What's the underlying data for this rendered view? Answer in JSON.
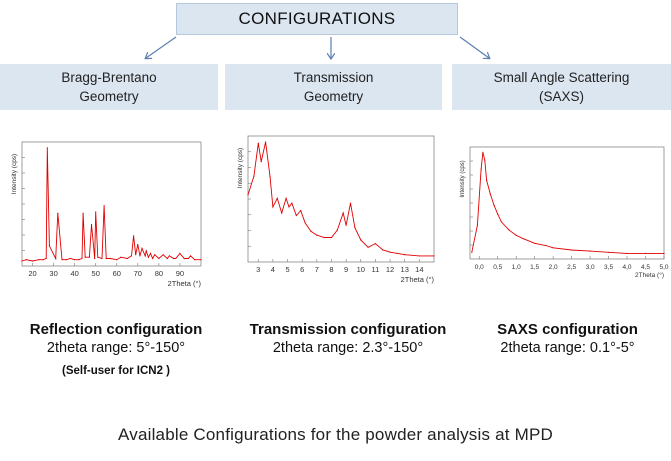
{
  "header": {
    "title": "CONFIGURATIONS"
  },
  "geometries": [
    {
      "line1": "Bragg-Brentano",
      "line2": "Geometry"
    },
    {
      "line1": "Transmission",
      "line2": "Geometry"
    },
    {
      "line1": "Small Angle Scattering",
      "line2": "(SAXS)"
    }
  ],
  "configs": [
    {
      "title": "Reflection configuration",
      "range": "2theta range: 5°-150°",
      "note": "(Self-user for ICN2 )"
    },
    {
      "title": "Transmission configuration",
      "range": "2theta range: 2.3°-150°"
    },
    {
      "title": "SAXS configuration",
      "range": "2theta range: 0.1°-5°"
    }
  ],
  "caption": "Available Configurations for the powder analysis at MPD",
  "colors": {
    "box_fill": "#dce6f1",
    "arrow": "#5b7fb0",
    "trace": "#e00000"
  },
  "chart_data": [
    {
      "type": "line",
      "ylabel": "Intensity (cps)",
      "xlabel": "2Theta (°)",
      "xlim": [
        15,
        100
      ],
      "xticks": [
        "20",
        "30",
        "40",
        "50",
        "60",
        "70",
        "80",
        "90"
      ],
      "x": [
        15,
        17,
        20,
        23,
        25,
        26.5,
        27,
        28,
        31,
        32,
        34,
        36,
        38,
        40,
        42,
        43.5,
        44,
        45,
        47,
        48,
        49.5,
        50,
        51,
        53,
        54,
        55,
        57,
        60,
        62,
        65,
        67,
        68,
        69,
        70,
        71,
        72,
        73.5,
        74,
        75,
        76,
        77,
        78,
        80,
        82,
        84,
        85,
        87,
        88,
        90,
        92,
        94,
        95,
        97,
        100
      ],
      "y": [
        4,
        5,
        4,
        5,
        5,
        6,
        94,
        16,
        6,
        42,
        5,
        5,
        6,
        5,
        5,
        6,
        42,
        7,
        7,
        33,
        6,
        43,
        7,
        6,
        48,
        6,
        6,
        5,
        7,
        6,
        8,
        24,
        9,
        17,
        8,
        14,
        8,
        12,
        7,
        10,
        6,
        9,
        6,
        9,
        6,
        8,
        6,
        6,
        10,
        6,
        6,
        8,
        5,
        5
      ]
    },
    {
      "type": "line",
      "ylabel": "Intensity (cps)",
      "xlabel": "2Theta (°)",
      "xlim": [
        2.3,
        15
      ],
      "xticks": [
        "3",
        "4",
        "5",
        "6",
        "7",
        "8",
        "9",
        "10",
        "11",
        "12",
        "13",
        "14"
      ],
      "x": [
        2.3,
        2.7,
        3.0,
        3.2,
        3.5,
        3.8,
        4.0,
        4.3,
        4.6,
        4.9,
        5.1,
        5.3,
        5.6,
        5.9,
        6.2,
        6.6,
        7.0,
        7.5,
        8.0,
        8.4,
        8.8,
        9.0,
        9.3,
        9.6,
        10.0,
        10.5,
        11.0,
        11.5,
        12.0,
        12.5,
        13.0,
        14.0,
        15.0
      ],
      "y": [
        55,
        70,
        97,
        82,
        98,
        70,
        45,
        52,
        40,
        52,
        45,
        48,
        38,
        42,
        32,
        25,
        22,
        20,
        20,
        26,
        40,
        30,
        48,
        28,
        18,
        12,
        15,
        10,
        8,
        7,
        6,
        5,
        5
      ]
    },
    {
      "type": "line",
      "ylabel": "Intensity (cps)",
      "xlabel": "2Theta (°)",
      "xlim": [
        -0.25,
        5
      ],
      "xticks": [
        "0,0",
        "0,5",
        "1,0",
        "1,5",
        "2,0",
        "2,5",
        "3,0",
        "3,5",
        "4,0",
        "4,5",
        "5,0"
      ],
      "x": [
        -0.2,
        -0.05,
        0.05,
        0.1,
        0.15,
        0.2,
        0.3,
        0.4,
        0.5,
        0.6,
        0.8,
        1.0,
        1.2,
        1.5,
        1.8,
        2.0,
        2.5,
        3.0,
        3.5,
        4.0,
        4.5,
        5.0
      ],
      "y": [
        6,
        30,
        80,
        95,
        88,
        70,
        58,
        48,
        40,
        33,
        26,
        21,
        18,
        14,
        12,
        10,
        8,
        7,
        6,
        5,
        5,
        5
      ]
    }
  ]
}
